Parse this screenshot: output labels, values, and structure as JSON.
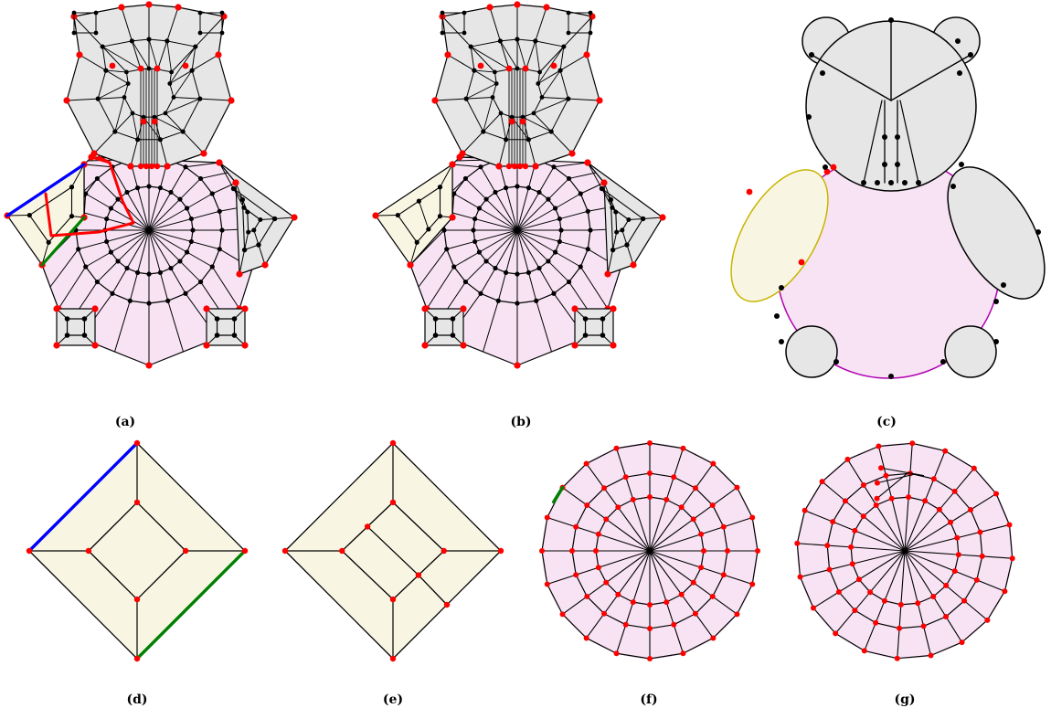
{
  "captions": {
    "a": "(a)",
    "b": "(b)",
    "c": "(c)",
    "d": "(d)",
    "e": "(e)",
    "f": "(f)",
    "g": "(g)"
  },
  "colors": {
    "background": "#ffffff",
    "edge": "#000000",
    "vertex_boundary": "#ff0000",
    "vertex_interior": "#000000",
    "face_gray": "#e6e6e6",
    "face_pink": "#f7e3f4",
    "face_yellow": "#f8f6e3",
    "outline_pink": "#b000b0",
    "outline_yellow": "#c8b400",
    "highlight_blue": "#0000ff",
    "highlight_green": "#008000",
    "highlight_red": "#ff0000"
  }
}
